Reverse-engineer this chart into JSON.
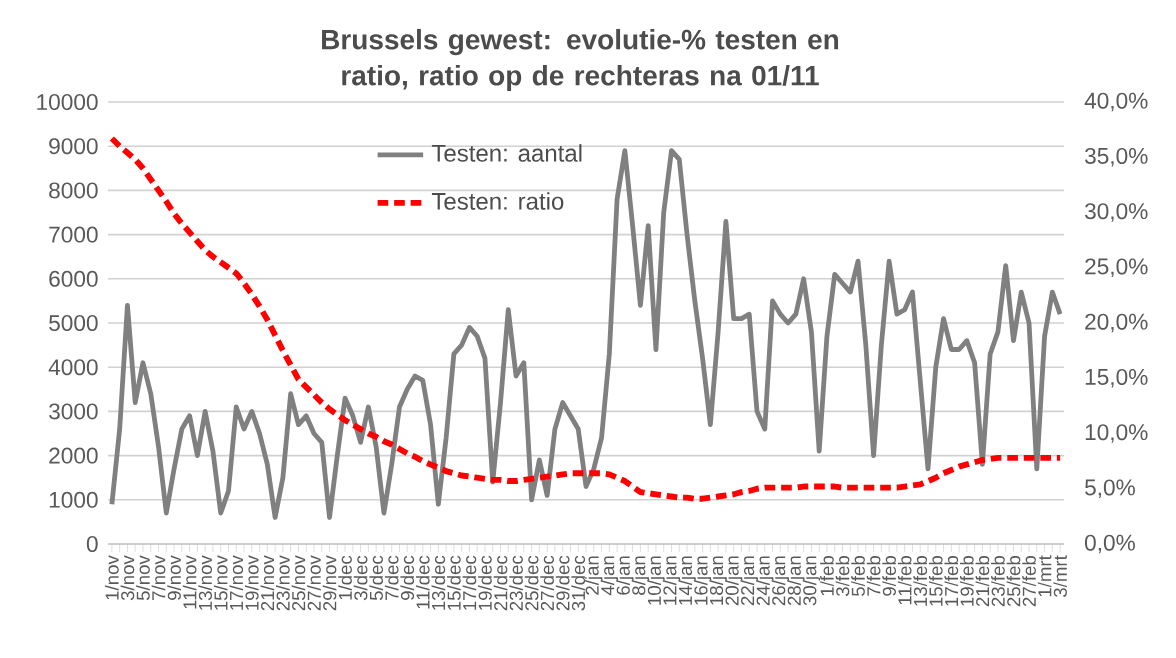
{
  "chart_data": {
    "type": "line",
    "title": "Brussels gewest: evolutie-% testen en ratio, ratio op de rechteras na 01/11",
    "categories": [
      "1/nov",
      null,
      "3/nov",
      null,
      "5/nov",
      null,
      "7/nov",
      null,
      "9/nov",
      null,
      "11/nov",
      null,
      "13/nov",
      null,
      "15/nov",
      null,
      "17/nov",
      null,
      "19/nov",
      null,
      "21/nov",
      null,
      "23/nov",
      null,
      "25/nov",
      null,
      "27/nov",
      null,
      "29/nov",
      null,
      "1/dec",
      null,
      "3/dec",
      null,
      "5/dec",
      null,
      "7/dec",
      null,
      "9/dec",
      null,
      "11/dec",
      null,
      "13/dec",
      null,
      "15/dec",
      null,
      "17/dec",
      null,
      "19/dec",
      null,
      "21/dec",
      null,
      "23/dec",
      null,
      "25/dec",
      null,
      "27/dec",
      null,
      "29/dec",
      null,
      "31/dec",
      null,
      "2/jan",
      null,
      "4/jan",
      null,
      "6/jan",
      null,
      "8/jan",
      null,
      "10/jan",
      null,
      "12/jan",
      null,
      "14/jan",
      null,
      "16/jan",
      null,
      "18/jan",
      null,
      "20/jan",
      null,
      "22/jan",
      null,
      "24/jan",
      null,
      "26/jan",
      null,
      "28/jan",
      null,
      "30/jan",
      null,
      "1/feb",
      null,
      "3/feb",
      null,
      "5/feb",
      null,
      "7/feb",
      null,
      "9/feb",
      null,
      "11/feb",
      null,
      "13/feb",
      null,
      "15/feb",
      null,
      "17/feb",
      null,
      "19/feb",
      null,
      "21/feb",
      null,
      "23/feb",
      null,
      "25/feb",
      null,
      "27/feb",
      null,
      "1/mrt",
      null,
      "3/mrt"
    ],
    "series": [
      {
        "name": "Testen: aantal",
        "color": "#808080",
        "line_style": "solid",
        "values": [
          900,
          2600,
          5400,
          3200,
          4100,
          3400,
          2200,
          700,
          1700,
          2600,
          2900,
          2000,
          3000,
          2100,
          700,
          1200,
          3100,
          2600,
          3000,
          2500,
          1800,
          600,
          1500,
          3400,
          2700,
          2900,
          2500,
          2300,
          600,
          2000,
          3300,
          2900,
          2300,
          3100,
          2200,
          700,
          1800,
          3100,
          3500,
          3800,
          3700,
          2700,
          900,
          2400,
          4300,
          4500,
          4900,
          4700,
          4200,
          1400,
          3200,
          5300,
          3800,
          4100,
          1000,
          1900,
          1100,
          2600,
          3200,
          2900,
          2600,
          1300,
          1700,
          2400,
          4300,
          7800,
          8900,
          7200,
          5400,
          7200,
          4400,
          7500,
          8900,
          8700,
          7000,
          5500,
          4200,
          2700,
          4800,
          7300,
          5100,
          5100,
          5200,
          3000,
          2600,
          5500,
          5200,
          5000,
          5200,
          6000,
          4800,
          2100,
          4700,
          6100,
          5900,
          5700,
          6400,
          4500,
          2000,
          4500,
          6400,
          5200,
          5300,
          5700,
          3700,
          1700,
          4000,
          5100,
          4400,
          4400,
          4600,
          4100,
          1800,
          4300,
          4800,
          6300,
          4600,
          5700,
          5000,
          1700,
          4700,
          5700,
          5200
        ]
      },
      {
        "name": "Testen: ratio",
        "color": "#ff0000",
        "line_style": "dashed",
        "axis": "y2",
        "values": [
          36.7,
          36.0,
          35.4,
          34.8,
          34.0,
          33.0,
          32.0,
          31.0,
          29.9,
          29.0,
          28.2,
          27.4,
          26.6,
          26.0,
          25.5,
          25.0,
          24.5,
          23.6,
          22.6,
          21.5,
          20.3,
          18.9,
          17.5,
          16.2,
          14.9,
          14.2,
          13.5,
          12.8,
          12.2,
          11.7,
          11.2,
          10.8,
          10.4,
          10.0,
          9.7,
          9.3,
          9.0,
          8.6,
          8.2,
          7.9,
          7.5,
          7.2,
          6.9,
          6.6,
          6.4,
          6.2,
          6.1,
          6.0,
          5.9,
          5.8,
          5.8,
          5.7,
          5.7,
          5.8,
          5.9,
          6.0,
          6.1,
          6.2,
          6.3,
          6.4,
          6.4,
          6.4,
          6.4,
          6.4,
          6.3,
          6.0,
          5.7,
          5.2,
          4.7,
          4.6,
          4.5,
          4.4,
          4.3,
          4.2,
          4.2,
          4.1,
          4.1,
          4.2,
          4.3,
          4.4,
          4.5,
          4.7,
          4.8,
          5.0,
          5.1,
          5.1,
          5.1,
          5.1,
          5.1,
          5.2,
          5.2,
          5.2,
          5.2,
          5.2,
          5.1,
          5.1,
          5.1,
          5.1,
          5.1,
          5.1,
          5.1,
          5.1,
          5.2,
          5.3,
          5.4,
          5.7,
          6.0,
          6.4,
          6.7,
          7.0,
          7.2,
          7.4,
          7.6,
          7.7,
          7.8,
          7.8,
          7.8,
          7.8,
          7.8,
          7.8,
          7.8,
          7.8,
          7.8
        ]
      }
    ],
    "ylim": [
      0,
      10000
    ],
    "yticks": [
      0,
      1000,
      2000,
      3000,
      4000,
      5000,
      6000,
      7000,
      8000,
      9000,
      10000
    ],
    "y2lim": [
      0,
      40
    ],
    "y2ticks": [
      {
        "value": 0,
        "label": "0,0%"
      },
      {
        "value": 5,
        "label": "5,0%"
      },
      {
        "value": 10,
        "label": "10,0%"
      },
      {
        "value": 15,
        "label": "15,0%"
      },
      {
        "value": 20,
        "label": "20,0%"
      },
      {
        "value": 25,
        "label": "25,0%"
      },
      {
        "value": 30,
        "label": "30,0%"
      },
      {
        "value": 35,
        "label": "35,0%"
      },
      {
        "value": 40,
        "label": "40,0%"
      }
    ],
    "grid": "y",
    "legend": "top"
  }
}
